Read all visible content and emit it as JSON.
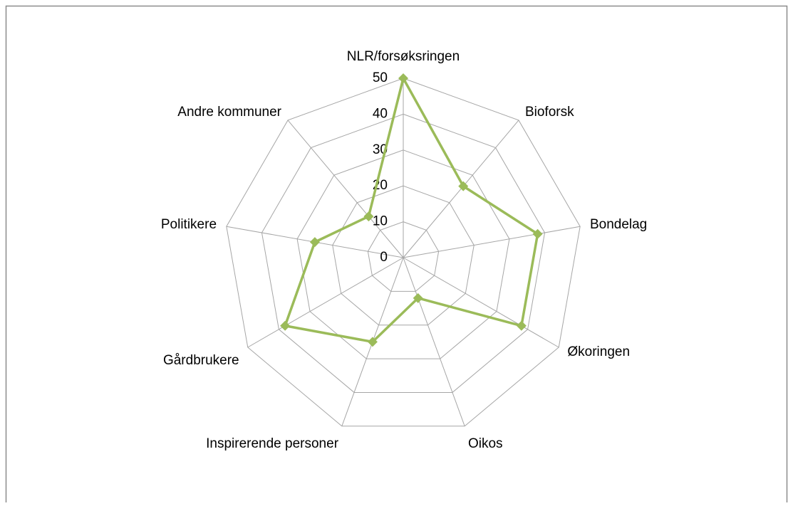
{
  "chart_data": {
    "type": "radar",
    "categories": [
      "NLR/forsøksringen",
      "Bioforsk",
      "Bondelag",
      "Økoringen",
      "Oikos",
      "Inspirerende personer",
      "Gårdbrukere",
      "Politikere",
      "Andre kommuner"
    ],
    "values": [
      50,
      26,
      38,
      38,
      12,
      25,
      38,
      25,
      15
    ],
    "color": "#9bbb59",
    "ylim": [
      0,
      50
    ],
    "yticks": [
      0,
      10,
      20,
      30,
      40,
      50
    ],
    "grid": true
  }
}
